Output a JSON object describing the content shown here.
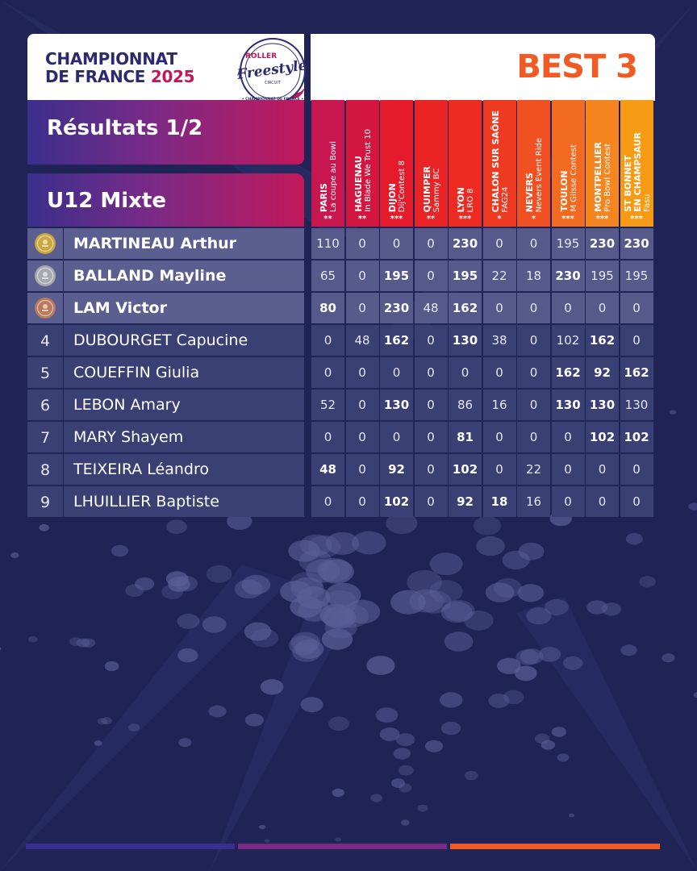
{
  "header": {
    "title_line1": "CHAMPIONNAT",
    "title_line2_a": "DE FRANCE",
    "title_line2_b": "2025",
    "best_label": "BEST 3",
    "logo": {
      "line1": "ROLLER",
      "line2": "Freestyle",
      "line3": "CIRCUIT",
      "ring_text": "• CHAMPIONNAT DE FRANCE •"
    }
  },
  "results_label": "Résultats 1/2",
  "category_label": "U12 Mixte",
  "columns": [
    {
      "city": "PARIS",
      "event": "La coupe au Bowl",
      "stars": "**"
    },
    {
      "city": "HAGUENAU",
      "event": "In Blade We Trust 10",
      "stars": "**"
    },
    {
      "city": "DIJON",
      "event": "Dij'Contest 8",
      "stars": "***"
    },
    {
      "city": "QUIMPER",
      "event": "Sammy BC",
      "stars": "**"
    },
    {
      "city": "LYON",
      "event": "LRO 8",
      "stars": "***"
    },
    {
      "city": "CHALON SUR SAÔNE",
      "event": "FAG24",
      "stars": "*"
    },
    {
      "city": "NEVERS",
      "event": "Nevers Event Ride",
      "stars": "*"
    },
    {
      "city": "TOULON",
      "event": "M Glisse Contest",
      "stars": "***"
    },
    {
      "city": "MONTPELLIER",
      "event": "Pro Bowl Contest",
      "stars": "***"
    },
    {
      "city": "ST BONNET EN CHAMPSAUR",
      "event": "Fasu",
      "stars": "***"
    }
  ],
  "column_colors": [
    "#c8174e",
    "#d3163f",
    "#e51b2c",
    "#ea2424",
    "#ed2b23",
    "#ef3a22",
    "#f15122",
    "#f36b20",
    "#f5851e",
    "#f79a14"
  ],
  "medal_colors": {
    "gold": "#c9a640",
    "silver": "#a7a9b0",
    "bronze": "#b77a5e"
  },
  "rows": [
    {
      "rank": "",
      "medal": "gold",
      "medal_icon": "gold-medal-icon",
      "name": "MARTINEAU Arthur",
      "scores": [
        "110",
        "0",
        "0",
        "0",
        "230",
        "0",
        "0",
        "195",
        "230",
        "230"
      ],
      "best": [
        4,
        8,
        9
      ]
    },
    {
      "rank": "",
      "medal": "silver",
      "medal_icon": "silver-medal-icon",
      "name": "BALLAND Mayline",
      "scores": [
        "65",
        "0",
        "195",
        "0",
        "195",
        "22",
        "18",
        "230",
        "195",
        "195"
      ],
      "best": [
        2,
        4,
        7
      ]
    },
    {
      "rank": "",
      "medal": "bronze",
      "medal_icon": "bronze-medal-icon",
      "name": "LAM Victor",
      "scores": [
        "80",
        "0",
        "230",
        "48",
        "162",
        "0",
        "0",
        "0",
        "0",
        "0"
      ],
      "best": [
        0,
        2,
        4
      ]
    },
    {
      "rank": "4",
      "name": "DUBOURGET Capucine",
      "scores": [
        "0",
        "48",
        "162",
        "0",
        "130",
        "38",
        "0",
        "102",
        "162",
        "0"
      ],
      "best": [
        2,
        4,
        8
      ]
    },
    {
      "rank": "5",
      "name": "COUEFFIN Giulia",
      "scores": [
        "0",
        "0",
        "0",
        "0",
        "0",
        "0",
        "0",
        "162",
        "92",
        "162"
      ],
      "best": [
        7,
        8,
        9
      ]
    },
    {
      "rank": "6",
      "name": "LEBON Amary",
      "scores": [
        "52",
        "0",
        "130",
        "0",
        "86",
        "16",
        "0",
        "130",
        "130",
        "130"
      ],
      "best": [
        2,
        7,
        8
      ]
    },
    {
      "rank": "7",
      "name": "MARY Shayem",
      "scores": [
        "0",
        "0",
        "0",
        "0",
        "81",
        "0",
        "0",
        "0",
        "102",
        "102"
      ],
      "best": [
        4,
        8,
        9
      ]
    },
    {
      "rank": "8",
      "name": "TEIXEIRA Léandro",
      "scores": [
        "48",
        "0",
        "92",
        "0",
        "102",
        "0",
        "22",
        "0",
        "0",
        "0"
      ],
      "best": [
        0,
        2,
        4
      ]
    },
    {
      "rank": "9",
      "name": "LHUILLIER Baptiste",
      "scores": [
        "0",
        "0",
        "102",
        "0",
        "92",
        "18",
        "16",
        "0",
        "0",
        "0"
      ],
      "best": [
        2,
        4,
        5
      ]
    }
  ],
  "footer_bar_colors": [
    "#3a2f8c",
    "#7a2a86",
    "#f15a22"
  ]
}
